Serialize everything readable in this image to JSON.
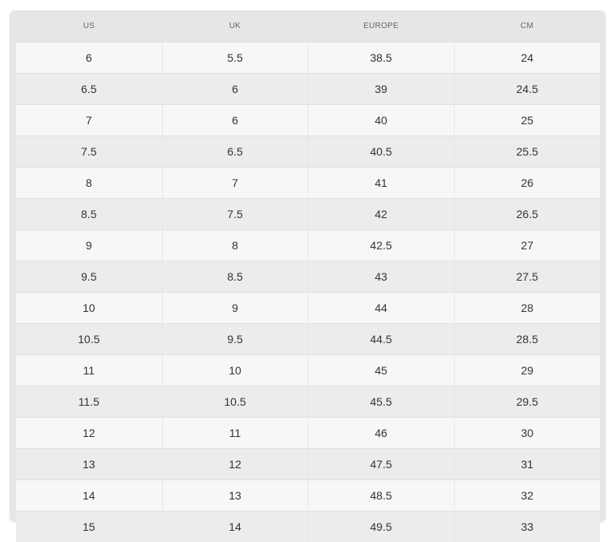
{
  "table": {
    "headers": [
      "US",
      "UK",
      "EUROPE",
      "CM"
    ],
    "rows": [
      [
        "6",
        "5.5",
        "38.5",
        "24"
      ],
      [
        "6.5",
        "6",
        "39",
        "24.5"
      ],
      [
        "7",
        "6",
        "40",
        "25"
      ],
      [
        "7.5",
        "6.5",
        "40.5",
        "25.5"
      ],
      [
        "8",
        "7",
        "41",
        "26"
      ],
      [
        "8.5",
        "7.5",
        "42",
        "26.5"
      ],
      [
        "9",
        "8",
        "42.5",
        "27"
      ],
      [
        "9.5",
        "8.5",
        "43",
        "27.5"
      ],
      [
        "10",
        "9",
        "44",
        "28"
      ],
      [
        "10.5",
        "9.5",
        "44.5",
        "28.5"
      ],
      [
        "11",
        "10",
        "45",
        "29"
      ],
      [
        "11.5",
        "10.5",
        "45.5",
        "29.5"
      ],
      [
        "12",
        "11",
        "46",
        "30"
      ],
      [
        "13",
        "12",
        "47.5",
        "31"
      ],
      [
        "14",
        "13",
        "48.5",
        "32"
      ],
      [
        "15",
        "14",
        "49.5",
        "33"
      ]
    ]
  }
}
